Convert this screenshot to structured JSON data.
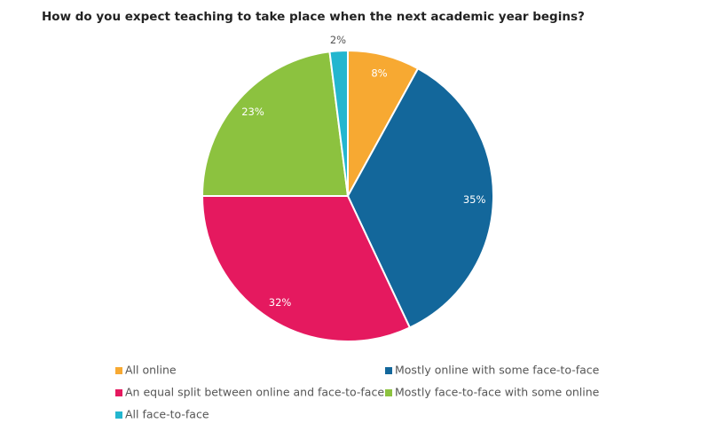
{
  "chart_data": {
    "type": "pie",
    "title": "How do you expect teaching to take place when the next academic year begins?",
    "categories": [
      "All online",
      "Mostly online with some face-to-face",
      "An equal split between online and face-to-face",
      "Mostly face-to-face with some online",
      "All face-to-face"
    ],
    "values": [
      8,
      35,
      32,
      23,
      2
    ],
    "value_labels": [
      "8%",
      "35%",
      "32%",
      "23%",
      "2%"
    ],
    "colors": [
      "#f7a932",
      "#13679b",
      "#e5195f",
      "#8cc23f",
      "#23b6cf"
    ]
  }
}
